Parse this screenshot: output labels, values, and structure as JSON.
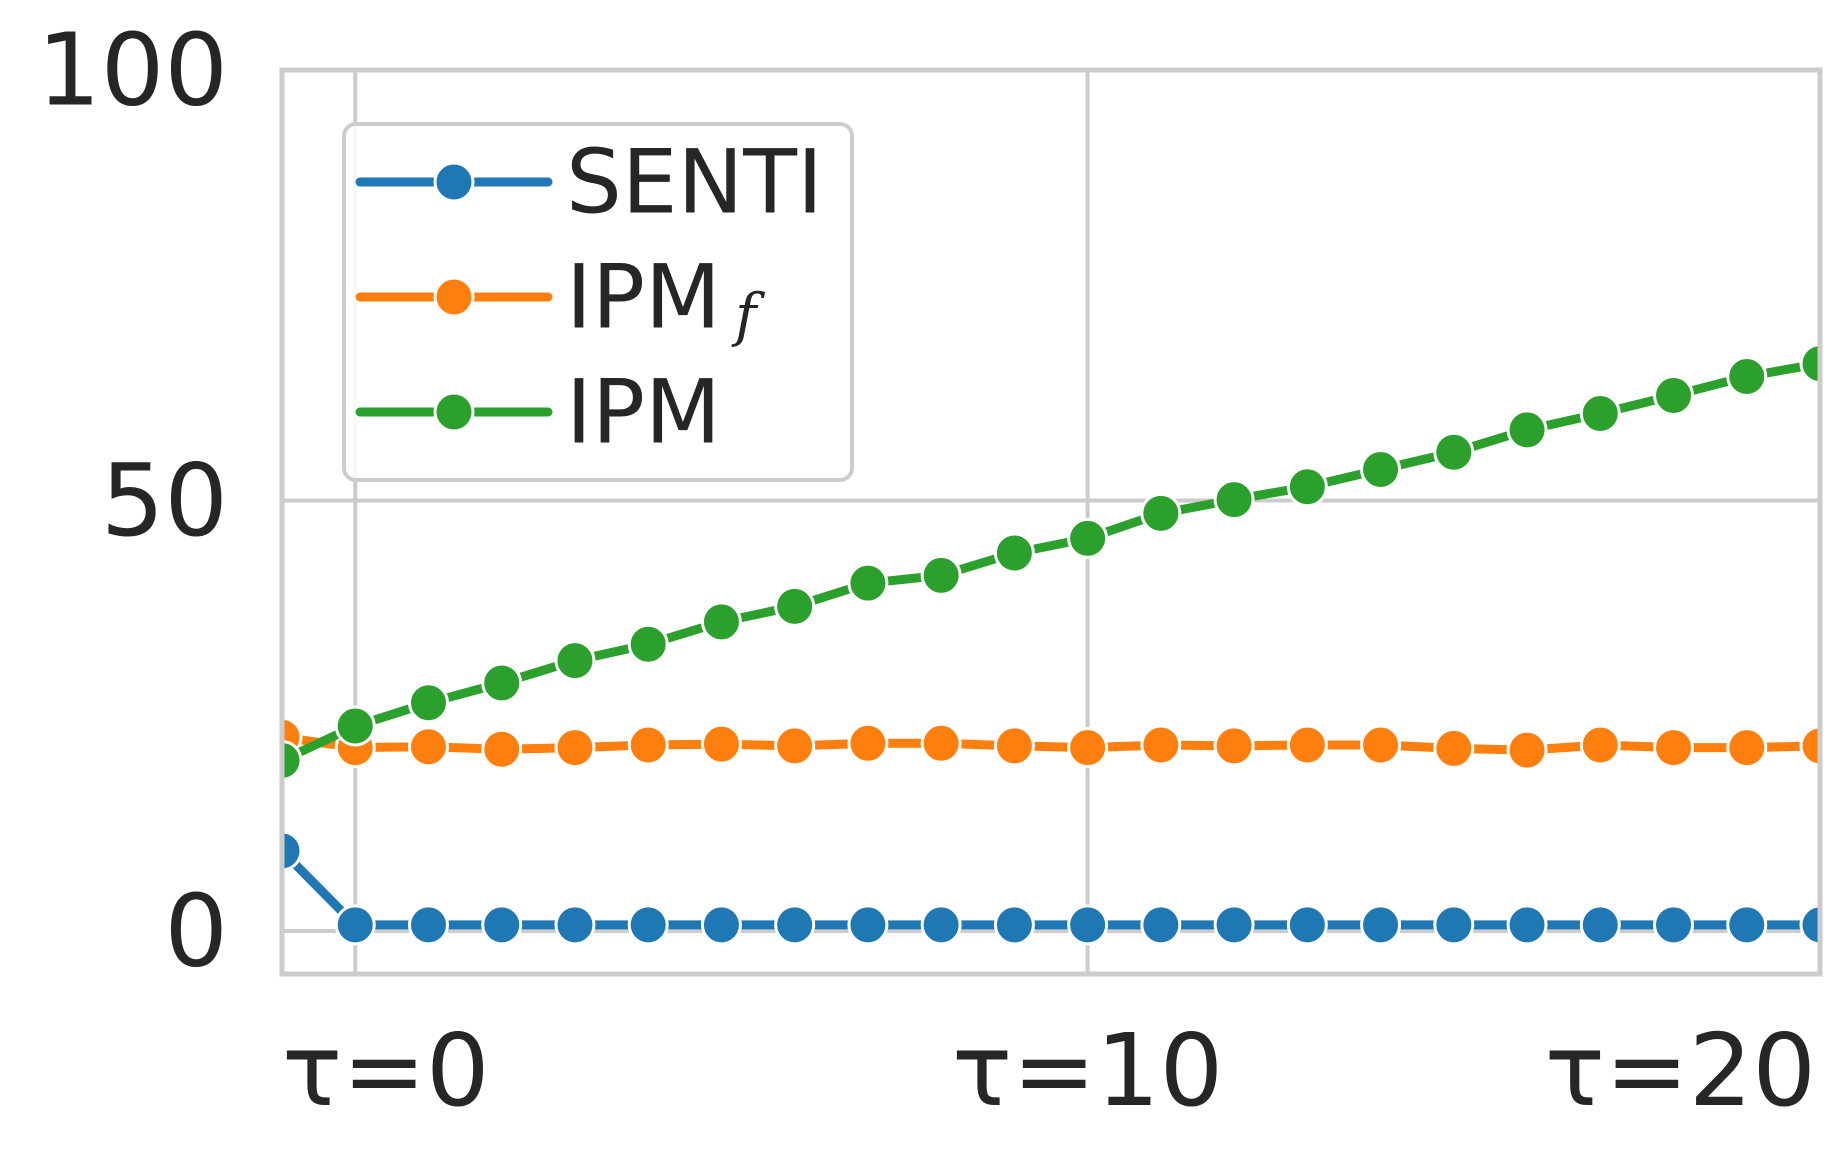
{
  "chart_data": {
    "type": "line",
    "title": "",
    "xlabel": "",
    "ylabel": "",
    "x": [
      -1,
      0,
      1,
      2,
      3,
      4,
      5,
      6,
      7,
      8,
      9,
      10,
      11,
      12,
      13,
      14,
      15,
      16,
      17,
      18,
      19,
      20
    ],
    "xlim": [
      -1,
      20
    ],
    "ylim": [
      -5,
      100
    ],
    "x_ticks": [
      {
        "value": 0,
        "label": "τ=0"
      },
      {
        "value": 10,
        "label": "τ=10"
      },
      {
        "value": 20,
        "label": "τ=20"
      }
    ],
    "y_ticks": [
      {
        "value": 0,
        "label": "0"
      },
      {
        "value": 50,
        "label": "50"
      },
      {
        "value": 100,
        "label": "100"
      }
    ],
    "grid": true,
    "legend_position": "top-left",
    "series": [
      {
        "name": "SENTI",
        "subscript": "",
        "color": "#1f77b4",
        "values": [
          9.3,
          0.7,
          0.7,
          0.7,
          0.7,
          0.7,
          0.7,
          0.7,
          0.7,
          0.7,
          0.7,
          0.7,
          0.7,
          0.7,
          0.7,
          0.7,
          0.7,
          0.7,
          0.7,
          0.7,
          0.7,
          0.7
        ]
      },
      {
        "name": "IPM",
        "subscript": "f",
        "color": "#ff7f0e",
        "values": [
          22.5,
          21.3,
          21.4,
          21.1,
          21.3,
          21.6,
          21.7,
          21.5,
          21.8,
          21.8,
          21.5,
          21.3,
          21.6,
          21.5,
          21.6,
          21.6,
          21.2,
          21.0,
          21.6,
          21.3,
          21.3,
          21.5
        ]
      },
      {
        "name": "IPM",
        "subscript": "",
        "color": "#2ca02c",
        "values": [
          19.8,
          23.8,
          26.5,
          28.8,
          31.4,
          33.3,
          35.9,
          37.7,
          40.4,
          41.3,
          43.9,
          45.6,
          48.5,
          50.1,
          51.6,
          53.6,
          55.6,
          58.2,
          60.1,
          62.2,
          64.4,
          65.9
        ]
      }
    ]
  }
}
